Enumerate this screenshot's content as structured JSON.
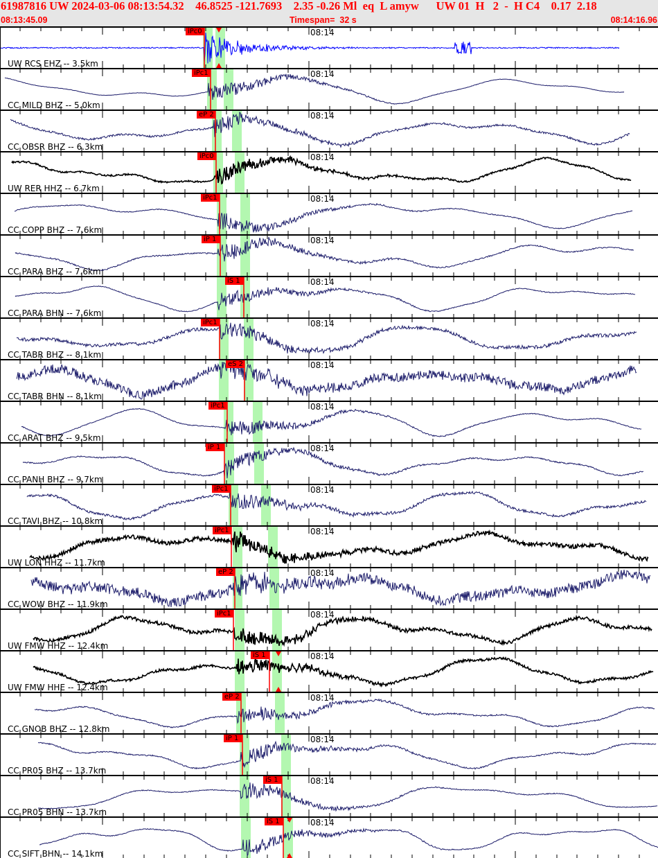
{
  "header": {
    "event_line": "61987816 UW 2024-03-06 08:13:54.32    46.8525 -121.7693    2.35 -0.26 Ml  eq  L amyw      UW 01  H   2  -  H C4    0.17  2.18",
    "start_time": "08:13:45.09",
    "timespan": "Timespan=  32 s",
    "end_time": "08:14:16.96"
  },
  "colors": {
    "header_text": "#ff0000",
    "pick": "#ff0000",
    "window": "#b3f7b0",
    "trace_blue": "#0000ff",
    "trace_navy": "#1c1c6a",
    "trace_black": "#000000"
  },
  "time_tick_label": "08:14",
  "traces": [
    {
      "label": "UW RCS EHZ -- 3.5km",
      "pick": "iPc0",
      "color": "trace_blue"
    },
    {
      "label": "CC MILD BHZ -- 5.0km",
      "pick": "iPc1",
      "color": "trace_navy"
    },
    {
      "label": "CC OBSR BHZ -- 6.3km",
      "pick": "eP 2",
      "color": "trace_navy"
    },
    {
      "label": "UW RER HHZ -- 6.7km",
      "pick": "iPc0",
      "color": "trace_black"
    },
    {
      "label": "CC COPP BHZ -- 7.6km",
      "pick": "iPc1",
      "color": "trace_navy"
    },
    {
      "label": "CC PARA BHZ -- 7.6km",
      "pick": "iP 1",
      "color": "trace_navy"
    },
    {
      "label": "CC PARA BHN -- 7.6km",
      "pick": "iS 1",
      "color": "trace_navy"
    },
    {
      "label": "CC TABR BHZ -- 8.1km",
      "pick": "iPc1",
      "color": "trace_navy"
    },
    {
      "label": "CC TABR BHN -- 8.1km",
      "pick": "eS 2",
      "color": "trace_navy"
    },
    {
      "label": "CC ARAT BHZ -- 9.5km",
      "pick": "iPc1",
      "color": "trace_navy"
    },
    {
      "label": "CC PANH BHZ -- 9.7km",
      "pick": "iP 1",
      "color": "trace_navy"
    },
    {
      "label": "CC TAVI BHZ -- 10.8km",
      "pick": "iPc1",
      "color": "trace_navy"
    },
    {
      "label": "UW LON HHZ -- 11.7km",
      "pick": "iPc1",
      "color": "trace_black"
    },
    {
      "label": "CC WOW BHZ -- 11.9km",
      "pick": "eP 2",
      "color": "trace_navy"
    },
    {
      "label": "UW FMW HHZ -- 12.4km",
      "pick": "iPc1",
      "color": "trace_black"
    },
    {
      "label": "UW FMW HHE -- 12.4km",
      "pick": "iS 1",
      "color": "trace_black"
    },
    {
      "label": "CC GNOB BHZ -- 12.8km",
      "pick": "eP 2",
      "color": "trace_navy"
    },
    {
      "label": "CC PR05 BHZ -- 13.7km",
      "pick": "iP 1",
      "color": "trace_navy"
    },
    {
      "label": "CC PR05 BHN -- 13.7km",
      "pick": "iS 1",
      "color": "trace_navy"
    },
    {
      "label": "CC SIFT BHN -- 14.1km",
      "pick": "iS 1",
      "color": "trace_navy"
    }
  ]
}
